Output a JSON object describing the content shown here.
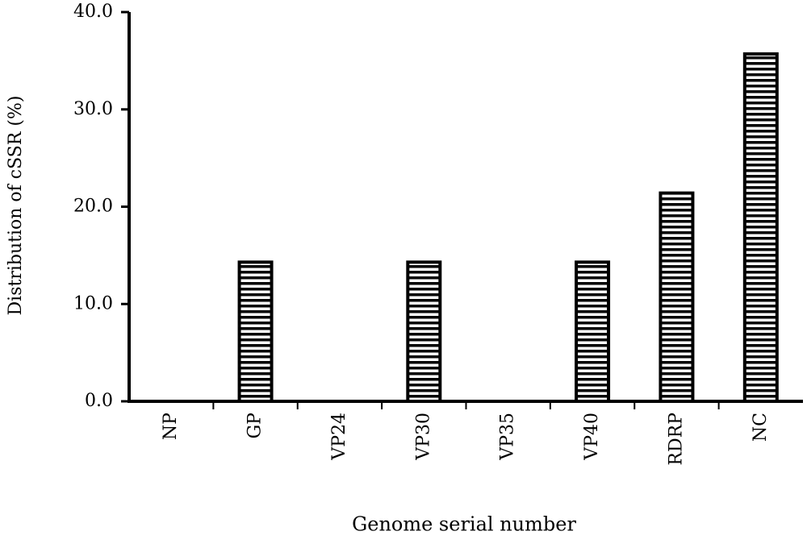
{
  "chart_data": {
    "type": "bar",
    "xlabel": "Genome serial number",
    "ylabel": "Distribution of  cSSR (%)",
    "categories": [
      "NP",
      "GP",
      "VP24",
      "VP30",
      "VP35",
      "VP40",
      "RDRP",
      "NC"
    ],
    "values": [
      0,
      14.3,
      0,
      14.3,
      0,
      14.3,
      21.4,
      35.7
    ],
    "color": "#000000",
    "ylim": [
      0,
      40
    ],
    "yticks": [
      {
        "value": 0,
        "label": "0.0"
      },
      {
        "value": 10,
        "label": "10.0"
      },
      {
        "value": 20,
        "label": "20.0"
      },
      {
        "value": 30,
        "label": "30.0"
      },
      {
        "value": 40,
        "label": "40.0"
      }
    ],
    "grid": false
  }
}
